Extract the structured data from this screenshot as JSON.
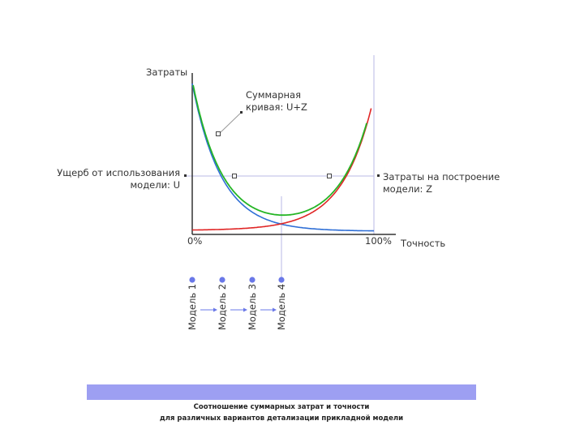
{
  "diagram": {
    "y_axis_label": "Затраты",
    "x_axis_label": "Точность",
    "x_start_label": "0%",
    "x_end_label": "100%",
    "sum_curve_label_line1": "Суммарная",
    "sum_curve_label_line2": "кривая: U+Z",
    "damage_label_line1": "Ущерб от использования",
    "damage_label_line2": "модели: U",
    "cost_label_line1": "Затраты на построение",
    "cost_label_line2": "модели: Z",
    "models": [
      "Модель 1",
      "Модель 2",
      "Модель 3",
      "Модель 4"
    ],
    "colors": {
      "damage_curve": "#2f6fd6",
      "cost_curve": "#e02626",
      "sum_curve": "#25b525",
      "axis": "#333333",
      "guide": "#b8b8e6",
      "model_marker": "#6a78e8"
    }
  },
  "caption": {
    "line1": "Соотношение суммарных затрат и точности",
    "line2": "для различных вариантов детализации прикладной модели",
    "bar_color": "#9d9ff2"
  }
}
